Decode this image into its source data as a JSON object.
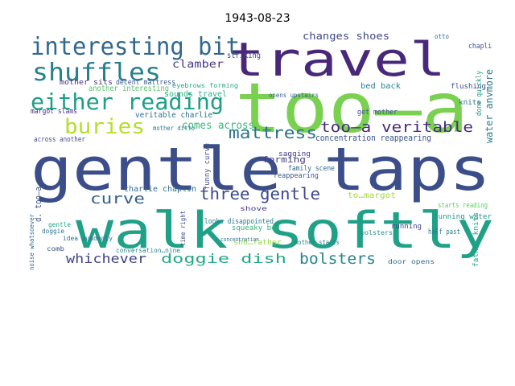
{
  "figure": {
    "title": "1943-08-23",
    "type": "word cloud"
  },
  "words": [
    {
      "text": "gentle taps",
      "color": "#3b4e8a"
    },
    {
      "text": "walk softly",
      "color": "#1fa187"
    },
    {
      "text": "too—a",
      "color": "#7ad151"
    },
    {
      "text": "travel",
      "color": "#482878"
    },
    {
      "text": "interesting bit",
      "color": "#31688e"
    },
    {
      "text": "shuffles",
      "color": "#277f8e"
    },
    {
      "text": "either reading",
      "color": "#1f9e89"
    },
    {
      "text": "buries",
      "color": "#b5de2b"
    },
    {
      "text": "three gentle",
      "color": "#3e4989"
    },
    {
      "text": "mattress",
      "color": "#2c728e"
    },
    {
      "text": "too—a veritable",
      "color": "#472c7a"
    },
    {
      "text": "bolsters",
      "color": "#25858e"
    },
    {
      "text": "curve",
      "color": "#355f8d"
    },
    {
      "text": "whichever",
      "color": "#414487"
    },
    {
      "text": "doggie dish",
      "color": "#22a884"
    },
    {
      "text": "changes shoes",
      "color": "#3f4788"
    },
    {
      "text": "clamber",
      "color": "#443983"
    },
    {
      "text": "comes across",
      "color": "#35b779"
    },
    {
      "text": "water anymore",
      "color": "#2a788e"
    },
    {
      "text": "charlie chaplin",
      "color": "#2e6f8e"
    },
    {
      "text": "concentration reappearing",
      "color": "#3a538b"
    },
    {
      "text": "running water",
      "color": "#1f968b"
    },
    {
      "text": "forming",
      "color": "#433e85"
    },
    {
      "text": "striking",
      "color": "#404588"
    },
    {
      "text": "sounds travel",
      "color": "#2db27d"
    },
    {
      "text": "another interesting",
      "color": "#54c568"
    },
    {
      "text": "veritable charlie",
      "color": "#2d718e"
    },
    {
      "text": "mother sits",
      "color": "#46337e"
    },
    {
      "text": "decent mattress",
      "color": "#38598c"
    },
    {
      "text": "bed back",
      "color": "#26828e"
    },
    {
      "text": "get mother",
      "color": "#3d4d8a"
    },
    {
      "text": "to…margot",
      "color": "#a0da39"
    },
    {
      "text": "d. too—a",
      "color": "#3c508b"
    },
    {
      "text": "shh…father",
      "color": "#95d840"
    },
    {
      "text": "squeaky bed",
      "color": "#31b57b"
    },
    {
      "text": "looks disappointed",
      "color": "#287c8e"
    },
    {
      "text": "father knits",
      "color": "#20a386"
    },
    {
      "text": "half past",
      "color": "#2a778e"
    },
    {
      "text": "reappearing",
      "color": "#3b528b"
    },
    {
      "text": "sagging",
      "color": "#433d84"
    },
    {
      "text": "family scene",
      "color": "#31668e"
    },
    {
      "text": "mother starts",
      "color": "#27808e"
    },
    {
      "text": "starts reading",
      "color": "#5ec962"
    },
    {
      "text": "door opens",
      "color": "#2f6c8e"
    },
    {
      "text": "across another",
      "color": "#3d4e8a"
    },
    {
      "text": "conversation…nine",
      "color": "#24868e"
    },
    {
      "text": "opens upstairs",
      "color": "#355e8d"
    },
    {
      "text": "flushing",
      "color": "#3e4c8a"
    },
    {
      "text": "knits",
      "color": "#2c738e"
    },
    {
      "text": "done quickly",
      "color": "#1e9b8a"
    },
    {
      "text": "eyebrows forming",
      "color": "#26ad81"
    },
    {
      "text": "margot slams",
      "color": "#472a7a"
    },
    {
      "text": "mother ditto",
      "color": "#2a768e"
    },
    {
      "text": "funny curve",
      "color": "#3c4f8a"
    },
    {
      "text": "time right",
      "color": "#3e4a89"
    },
    {
      "text": "idea suddenly",
      "color": "#2b748e"
    },
    {
      "text": "noise whatsoever",
      "color": "#2f6b8e"
    },
    {
      "text": "concentration",
      "color": "#2e6e8e"
    },
    {
      "text": "chaplin",
      "color": "#3d4e8a"
    },
    {
      "text": "otto",
      "color": "#31678e"
    },
    {
      "text": "comb",
      "color": "#39558c"
    },
    {
      "text": "doggie",
      "color": "#2b758e"
    },
    {
      "text": "gentle",
      "color": "#1fa088"
    },
    {
      "text": "running",
      "color": "#3f4889"
    },
    {
      "text": "shove",
      "color": "#443b84"
    },
    {
      "text": "bolsters",
      "color": "#23898e"
    }
  ]
}
